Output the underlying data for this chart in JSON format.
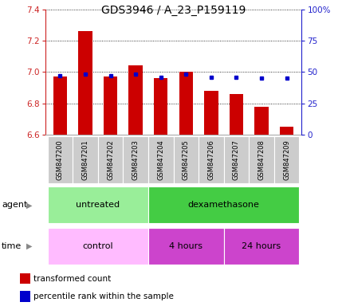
{
  "title": "GDS3946 / A_23_P159119",
  "samples": [
    "GSM847200",
    "GSM847201",
    "GSM847202",
    "GSM847203",
    "GSM847204",
    "GSM847205",
    "GSM847206",
    "GSM847207",
    "GSM847208",
    "GSM847209"
  ],
  "transformed_count": [
    6.97,
    7.26,
    6.97,
    7.04,
    6.96,
    7.0,
    6.88,
    6.86,
    6.78,
    6.65
  ],
  "percentile_rank": [
    47,
    48,
    47,
    48,
    46,
    48,
    46,
    46,
    45,
    45
  ],
  "ylim_left": [
    6.6,
    7.4
  ],
  "ylim_right": [
    0,
    100
  ],
  "yticks_left": [
    6.6,
    6.8,
    7.0,
    7.2,
    7.4
  ],
  "yticks_right": [
    0,
    25,
    50,
    75,
    100
  ],
  "bar_color": "#cc0000",
  "dot_color": "#0000cc",
  "baseline": 6.6,
  "agent_groups": [
    {
      "label": "untreated",
      "start": 0,
      "end": 4,
      "color": "#99ee99"
    },
    {
      "label": "dexamethasone",
      "start": 4,
      "end": 10,
      "color": "#44cc44"
    }
  ],
  "time_groups": [
    {
      "label": "control",
      "start": 0,
      "end": 4,
      "color": "#ffbbff"
    },
    {
      "label": "4 hours",
      "start": 4,
      "end": 7,
      "color": "#cc44cc"
    },
    {
      "label": "24 hours",
      "start": 7,
      "end": 10,
      "color": "#cc44cc"
    }
  ],
  "bg_color": "#ffffff",
  "grid_color": "#000000",
  "tick_label_color_left": "#cc2222",
  "tick_label_color_right": "#2222cc",
  "title_fontsize": 10,
  "axis_fontsize": 7.5,
  "sample_fontsize": 6,
  "row_label_fontsize": 8,
  "group_label_fontsize": 8,
  "legend_fontsize": 7.5
}
